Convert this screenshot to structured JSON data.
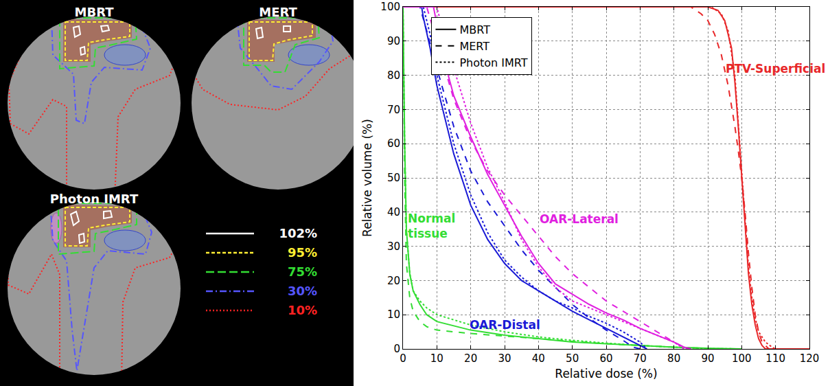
{
  "dose_maps": {
    "panels": [
      {
        "title": "MBRT"
      },
      {
        "title": "MERT"
      },
      {
        "title": "Photon IMRT"
      }
    ],
    "isodose_legend": [
      {
        "label": "102%",
        "color": "#ffffff",
        "line_style": "solid"
      },
      {
        "label": "95%",
        "color": "#ffee33",
        "line_style": "short_dashed"
      },
      {
        "label": "75%",
        "color": "#33dd33",
        "line_style": "dashed"
      },
      {
        "label": "30%",
        "color": "#5555ff",
        "line_style": "dash_dot"
      },
      {
        "label": "10%",
        "color": "#ff2222",
        "line_style": "dotted"
      }
    ]
  },
  "chart_data": {
    "type": "line",
    "xlabel": "Relative dose (%)",
    "ylabel": "Relative volume (%)",
    "xlim": [
      0,
      120
    ],
    "xticks": [
      0,
      10,
      20,
      30,
      40,
      50,
      60,
      70,
      80,
      90,
      100,
      110,
      120
    ],
    "ylim": [
      0,
      100
    ],
    "yticks": [
      0,
      10,
      20,
      30,
      40,
      50,
      60,
      70,
      80,
      90,
      100
    ],
    "grid": true,
    "legend": "upper left",
    "methods": [
      {
        "name": "MBRT",
        "line_style": "solid"
      },
      {
        "name": "MERT",
        "line_style": "dashed"
      },
      {
        "name": "Photon IMRT",
        "line_style": "dotted"
      }
    ],
    "groups": [
      {
        "label": "PTV-Superficial",
        "color": "#e8282a",
        "label_x": 110,
        "label_y": 82,
        "series": [
          {
            "method": "MBRT",
            "x": [
              0,
              90,
              93,
              95,
              97,
              98,
              99,
              100,
              101,
              102,
              103,
              104,
              105,
              106,
              107,
              120
            ],
            "values": [
              100,
              100,
              99,
              96,
              88,
              78,
              65,
              50,
              35,
              22,
              13,
              7,
              3,
              1,
              0,
              0
            ]
          },
          {
            "method": "MERT",
            "x": [
              0,
              85,
              88,
              90,
              92,
              94,
              96,
              98,
              99,
              100,
              101,
              102,
              103,
              104,
              105,
              106,
              108,
              120
            ],
            "values": [
              100,
              100,
              98,
              96,
              92,
              86,
              77,
              65,
              58,
              50,
              40,
              28,
              18,
              10,
              5,
              2,
              0,
              0
            ]
          },
          {
            "method": "Photon IMRT",
            "x": [
              0,
              91,
              94,
              96,
              98,
              99,
              100,
              101,
              102,
              103,
              104,
              105,
              107,
              109,
              110,
              120
            ],
            "values": [
              100,
              100,
              98,
              93,
              80,
              66,
              50,
              36,
              24,
              15,
              9,
              5,
              2,
              0.5,
              0,
              0
            ]
          }
        ]
      },
      {
        "label": "Normal tissue",
        "color": "#33dd33",
        "label_x": 1,
        "label_y": 36,
        "series": [
          {
            "method": "MBRT",
            "x": [
              0,
              0.5,
              1,
              2,
              3,
              5,
              7,
              10,
              20,
              30,
              40,
              50,
              60,
              70,
              80,
              90,
              100
            ],
            "values": [
              100,
              60,
              35,
              22,
              17,
              13,
              10,
              8,
              5.5,
              4,
              3,
              2,
              1.5,
              1,
              0.5,
              0.2,
              0
            ]
          },
          {
            "method": "MERT",
            "x": [
              0,
              0.5,
              1,
              2,
              3,
              5,
              7,
              10,
              20,
              30,
              40,
              50,
              60,
              70,
              80,
              90,
              100
            ],
            "values": [
              100,
              50,
              25,
              15,
              11,
              8,
              6.5,
              5.5,
              4.5,
              3.8,
              3,
              2.2,
              1.5,
              1,
              0.5,
              0.1,
              0
            ]
          },
          {
            "method": "Photon IMRT",
            "x": [
              0,
              0.5,
              1,
              2,
              3,
              5,
              7,
              10,
              20,
              30,
              40,
              50,
              60,
              70,
              80,
              90,
              100
            ],
            "values": [
              100,
              60,
              35,
              22,
              17,
              14,
              12,
              10,
              7,
              5,
              3.5,
              2.5,
              1.7,
              1,
              0.5,
              0.1,
              0
            ]
          }
        ]
      },
      {
        "label": "OAR-Distal",
        "color": "#1a1ad6",
        "label_x": 30,
        "label_y": 7,
        "series": [
          {
            "method": "MBRT",
            "x": [
              0,
              5.5,
              6,
              8,
              10,
              15,
              20,
              25,
              30,
              35,
              40,
              45,
              50,
              55,
              60,
              65,
              70,
              72
            ],
            "values": [
              100,
              100,
              97,
              88,
              77,
              57,
              42,
              32,
              25,
              20,
              17,
              14,
              11,
              8.5,
              6,
              3.5,
              1,
              0
            ]
          },
          {
            "method": "MERT",
            "x": [
              0,
              5,
              7,
              10,
              15,
              20,
              25,
              30,
              35,
              40,
              45,
              50,
              55,
              60,
              65,
              68,
              70
            ],
            "values": [
              100,
              100,
              93,
              82,
              65,
              52,
              43,
              36,
              29,
              23,
              18,
              13,
              9,
              5.5,
              2.5,
              0.5,
              0
            ]
          },
          {
            "method": "Photon IMRT",
            "x": [
              0,
              6,
              8,
              10,
              15,
              20,
              25,
              30,
              35,
              40,
              45,
              50,
              55,
              60,
              65,
              70,
              72
            ],
            "values": [
              100,
              100,
              92,
              80,
              60,
              45,
              34,
              26,
              21,
              17,
              14,
              12,
              9.5,
              7.5,
              5,
              2,
              0
            ]
          }
        ]
      },
      {
        "label": "OAR-Lateral",
        "color": "#e020e0",
        "label_x": 52,
        "label_y": 38,
        "series": [
          {
            "method": "MBRT",
            "x": [
              0,
              9,
              10,
              12,
              15,
              20,
              25,
              30,
              35,
              40,
              45,
              50,
              55,
              60,
              65,
              70,
              75,
              80,
              83,
              85
            ],
            "values": [
              100,
              100,
              95,
              85,
              74,
              62,
              51,
              42,
              33,
              25,
              19,
              16,
              13,
              10.5,
              8.5,
              6,
              4,
              2,
              0.5,
              0
            ]
          },
          {
            "method": "MERT",
            "x": [
              0,
              7,
              10,
              15,
              20,
              25,
              30,
              35,
              40,
              45,
              50,
              55,
              60,
              65,
              70,
              75,
              80,
              83,
              85
            ],
            "values": [
              100,
              100,
              90,
              73,
              61,
              52,
              45,
              39,
              33,
              27,
              22,
              18,
              14,
              11,
              8,
              5,
              2,
              0.5,
              0
            ]
          },
          {
            "method": "Photon IMRT",
            "x": [
              0,
              10,
              12,
              15,
              20,
              25,
              30,
              35,
              40,
              45,
              50,
              55,
              60,
              65,
              70,
              75,
              80,
              83,
              85
            ],
            "values": [
              100,
              100,
              92,
              82,
              66,
              53,
              43,
              32,
              24,
              18,
              14,
              12,
              10,
              8,
              6,
              4,
              2,
              0,
              0
            ]
          }
        ]
      }
    ]
  }
}
